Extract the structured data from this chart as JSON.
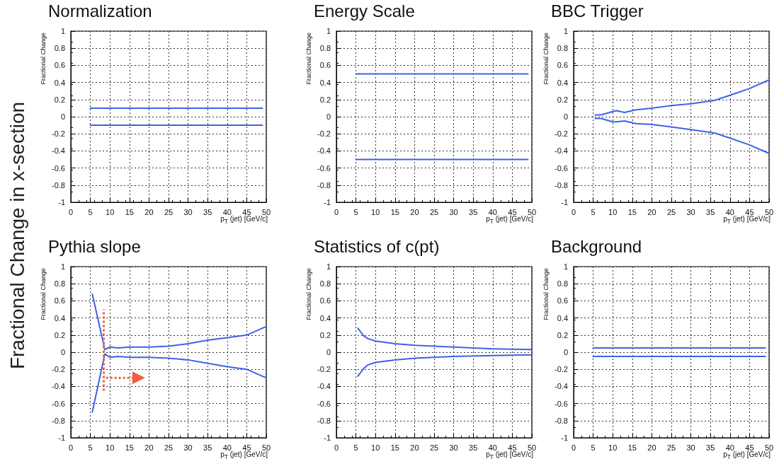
{
  "chart_data": [
    {
      "type": "line",
      "title": "Normalization",
      "xlabel": "p$_{T}$ (jet) [GeV/c]",
      "ylabel": "Fractional Change",
      "xlim": [
        0,
        50
      ],
      "ylim": [
        -1,
        1
      ],
      "xticks": [
        0,
        5,
        10,
        15,
        20,
        25,
        30,
        35,
        40,
        45,
        50
      ],
      "yticks": [
        -1,
        -0.8,
        -0.6,
        -0.4,
        -0.2,
        0,
        0.2,
        0.4,
        0.6,
        0.8,
        1
      ],
      "grid": true,
      "marker": "none",
      "line_style": "solid",
      "annotations": [
        "Fractional Change in x-section"
      ],
      "series": [
        {
          "color": "#3f62e8",
          "x": [
            5,
            49
          ],
          "values": [
            0.1,
            0.1
          ]
        },
        {
          "color": "#3f62e8",
          "x": [
            5,
            49
          ],
          "values": [
            -0.1,
            -0.1
          ]
        }
      ]
    },
    {
      "type": "line",
      "title": "Energy Scale",
      "xlabel": "p$_{T}$ (jet) [GeV/c]",
      "ylabel": "Fractional Change",
      "xlim": [
        0,
        50
      ],
      "ylim": [
        -1,
        1
      ],
      "xticks": [
        0,
        5,
        10,
        15,
        20,
        25,
        30,
        35,
        40,
        45,
        50
      ],
      "yticks": [
        -1,
        -0.8,
        -0.6,
        -0.4,
        -0.2,
        0,
        0.2,
        0.4,
        0.6,
        0.8,
        1
      ],
      "grid": true,
      "marker": "none",
      "line_style": "solid",
      "series": [
        {
          "color": "#3f62e8",
          "x": [
            5,
            49
          ],
          "values": [
            0.5,
            0.5
          ]
        },
        {
          "color": "#3f62e8",
          "x": [
            5,
            49
          ],
          "values": [
            -0.5,
            -0.5
          ]
        }
      ]
    },
    {
      "type": "line",
      "title": "BBC Trigger",
      "xlabel": "p$_{T}$ (jet) [GeV/c]",
      "ylabel": "Fractional Change",
      "xlim": [
        0,
        50
      ],
      "ylim": [
        -1,
        1
      ],
      "xticks": [
        0,
        5,
        10,
        15,
        20,
        25,
        30,
        35,
        40,
        45,
        50
      ],
      "yticks": [
        -1,
        -0.8,
        -0.6,
        -0.4,
        -0.2,
        0,
        0.2,
        0.4,
        0.6,
        0.8,
        1
      ],
      "grid": true,
      "marker": "none",
      "line_style": "solid",
      "series": [
        {
          "color": "#3f62e8",
          "x": [
            5.5,
            7,
            10,
            11,
            13,
            15,
            16,
            20,
            25,
            30,
            36,
            40,
            45,
            50
          ],
          "values": [
            0.02,
            0.02,
            0.06,
            0.07,
            0.05,
            0.07,
            0.08,
            0.1,
            0.13,
            0.15,
            0.19,
            0.25,
            0.33,
            0.43
          ]
        },
        {
          "color": "#3f62e8",
          "x": [
            5.5,
            7,
            10,
            11,
            13,
            15,
            16,
            20,
            25,
            30,
            36,
            40,
            45,
            50
          ],
          "values": [
            -0.02,
            -0.02,
            -0.06,
            -0.06,
            -0.05,
            -0.07,
            -0.08,
            -0.09,
            -0.12,
            -0.15,
            -0.19,
            -0.25,
            -0.33,
            -0.43
          ]
        }
      ]
    },
    {
      "type": "line",
      "title": "Pythia slope",
      "ref_lines": [
        {
          "axis": "x",
          "value": 8.3,
          "color": "#f06040",
          "line_style": "dotted"
        }
      ],
      "xlabel": "p$_{T}$ (jet) [GeV/c]",
      "ylabel": "Fractional Change",
      "xlim": [
        0,
        50
      ],
      "ylim": [
        -1,
        1
      ],
      "xticks": [
        0,
        5,
        10,
        15,
        20,
        25,
        30,
        35,
        40,
        45,
        50
      ],
      "yticks": [
        -1,
        -0.8,
        -0.6,
        -0.4,
        -0.2,
        0,
        0.2,
        0.4,
        0.6,
        0.8,
        1
      ],
      "grid": true,
      "marker": "none",
      "line_style": "solid",
      "series": [
        {
          "color": "#3f62e8",
          "x": [
            5.5,
            8.7,
            10,
            12,
            15,
            20,
            25,
            30,
            35,
            40,
            45,
            50
          ],
          "values": [
            0.68,
            0.03,
            0.06,
            0.05,
            0.06,
            0.06,
            0.07,
            0.1,
            0.14,
            0.17,
            0.2,
            0.3
          ]
        },
        {
          "color": "#3f62e8",
          "x": [
            5.5,
            8.7,
            10,
            12,
            15,
            20,
            25,
            30,
            35,
            40,
            45,
            50
          ],
          "values": [
            -0.7,
            -0.02,
            -0.06,
            -0.05,
            -0.06,
            -0.06,
            -0.07,
            -0.09,
            -0.13,
            -0.17,
            -0.2,
            -0.3
          ]
        }
      ]
    },
    {
      "type": "line",
      "title": "Statistics of c(pt)",
      "xlabel": "p$_{T}$ (jet) [GeV/c]",
      "ylabel": "Fractional Change",
      "xlim": [
        0,
        50
      ],
      "ylim": [
        -1,
        1
      ],
      "xticks": [
        0,
        5,
        10,
        15,
        20,
        25,
        30,
        35,
        40,
        45,
        50
      ],
      "yticks": [
        -1,
        -0.8,
        -0.6,
        -0.4,
        -0.2,
        0,
        0.2,
        0.4,
        0.6,
        0.8,
        1
      ],
      "grid": true,
      "marker": "none",
      "line_style": "solid",
      "series": [
        {
          "color": "#3f62e8",
          "x": [
            5.5,
            7,
            8,
            10,
            15,
            20,
            30,
            40,
            50
          ],
          "values": [
            0.28,
            0.19,
            0.16,
            0.13,
            0.1,
            0.08,
            0.06,
            0.04,
            0.03
          ]
        },
        {
          "color": "#3f62e8",
          "x": [
            5.5,
            7,
            8,
            10,
            15,
            20,
            30,
            40,
            50
          ],
          "values": [
            -0.28,
            -0.19,
            -0.15,
            -0.12,
            -0.09,
            -0.07,
            -0.05,
            -0.04,
            -0.03
          ]
        }
      ]
    },
    {
      "type": "line",
      "title": "Background",
      "xlabel": "p$_{T}$ (jet) [GeV/c]",
      "ylabel": "Fractional Change",
      "xlim": [
        0,
        50
      ],
      "ylim": [
        -1,
        1
      ],
      "xticks": [
        0,
        5,
        10,
        15,
        20,
        25,
        30,
        35,
        40,
        45,
        50
      ],
      "yticks": [
        -1,
        -0.8,
        -0.6,
        -0.4,
        -0.2,
        0,
        0.2,
        0.4,
        0.6,
        0.8,
        1
      ],
      "grid": true,
      "marker": "none",
      "line_style": "solid",
      "series": [
        {
          "color": "#3f62e8",
          "x": [
            5,
            49
          ],
          "values": [
            0.05,
            0.05
          ]
        },
        {
          "color": "#3f62e8",
          "x": [
            5,
            49
          ],
          "values": [
            -0.05,
            -0.05
          ]
        }
      ]
    }
  ]
}
